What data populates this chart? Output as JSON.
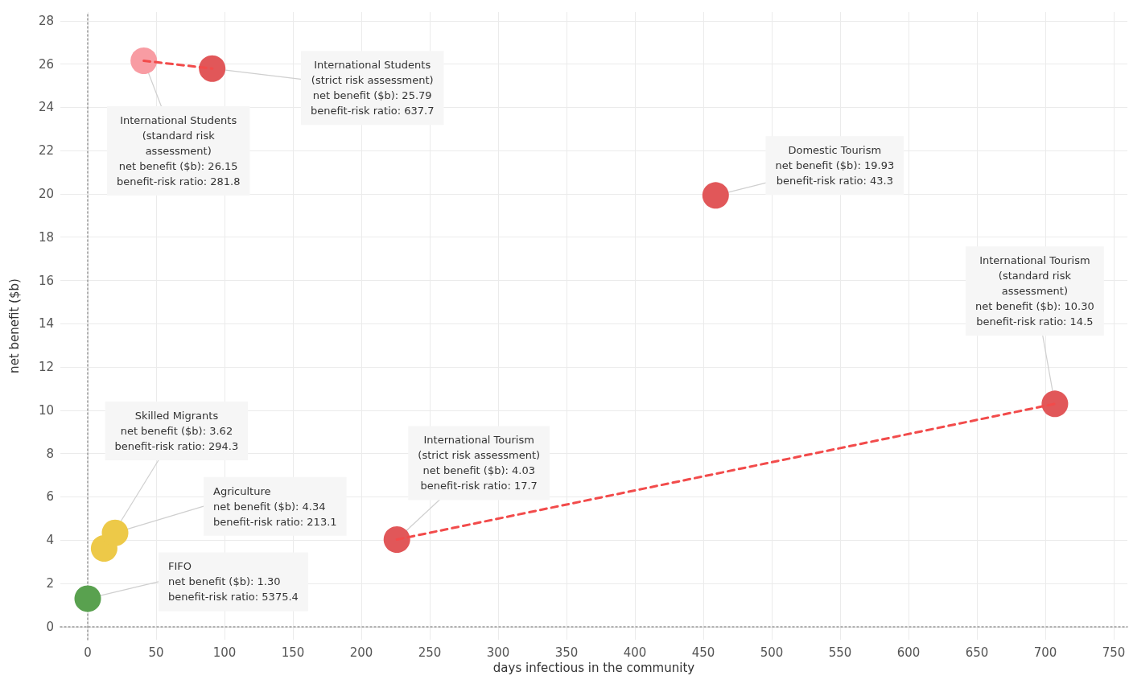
{
  "chart_data": {
    "type": "scatter",
    "xlabel": "days infectious in the community",
    "ylabel": "net benefit ($b)",
    "xlim": [
      -20,
      760
    ],
    "ylim": [
      -0.6,
      28.4
    ],
    "xticks": [
      0,
      50,
      100,
      150,
      200,
      250,
      300,
      350,
      400,
      450,
      500,
      550,
      600,
      650,
      700,
      750
    ],
    "yticks": [
      0,
      2,
      4,
      6,
      8,
      10,
      12,
      14,
      16,
      18,
      20,
      22,
      24,
      26,
      28
    ],
    "grid": true,
    "marker": "circle",
    "series": [
      {
        "type": "line",
        "line_style": "dashed",
        "marker": "none",
        "color": "#f24b4b",
        "x": [
          41,
          91
        ],
        "values": [
          26.15,
          25.79
        ]
      },
      {
        "type": "line",
        "line_style": "dashed",
        "marker": "none",
        "color": "#f24b4b",
        "x": [
          226,
          707
        ],
        "values": [
          4.03,
          10.3
        ]
      },
      {
        "x": [
          41,
          91,
          459,
          707,
          226,
          12,
          20,
          0
        ],
        "values": [
          26.15,
          25.79,
          19.93,
          10.3,
          4.03,
          3.62,
          4.34,
          1.3
        ],
        "colors": [
          "#f89ca3",
          "#e15759",
          "#e15759",
          "#e15759",
          "#e15759",
          "#edc948",
          "#edc948",
          "#59a14f"
        ]
      }
    ],
    "annotations": [
      {
        "text": "International Students\n(standard risk\nassessment)\nnet benefit ($b): 26.15\nbenefit-risk ratio: 281.8",
        "x": 41,
        "y": 26.15
      },
      {
        "text": "International Students\n(strict risk assessment)\nnet benefit ($b): 25.79\nbenefit-risk ratio: 637.7",
        "x": 91,
        "y": 25.79
      },
      {
        "text": "Domestic Tourism\nnet benefit ($b): 19.93\nbenefit-risk ratio: 43.3",
        "x": 459,
        "y": 19.93
      },
      {
        "text": "International Tourism\n(standard risk\nassessment)\nnet benefit ($b): 10.30\nbenefit-risk ratio: 14.5",
        "x": 707,
        "y": 10.3
      },
      {
        "text": "International Tourism\n(strict risk assessment)\nnet benefit ($b): 4.03\nbenefit-risk ratio: 17.7",
        "x": 226,
        "y": 4.03
      },
      {
        "text": "Skilled Migrants\nnet benefit ($b): 3.62\nbenefit-risk ratio: 294.3",
        "x": 12,
        "y": 3.62
      },
      {
        "text": "Agriculture\nnet benefit ($b): 4.34\nbenefit-risk ratio: 213.1",
        "x": 20,
        "y": 4.34
      },
      {
        "text": "FIFO\nnet benefit ($b): 1.30\nbenefit-risk ratio: 5375.4",
        "x": 0,
        "y": 1.3
      }
    ]
  }
}
